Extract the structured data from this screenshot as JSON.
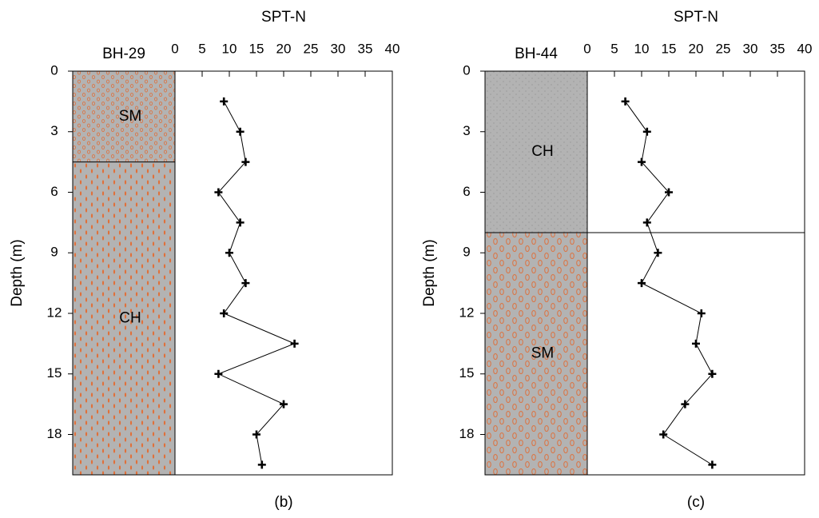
{
  "chart_data": [
    {
      "type": "line",
      "title": "SPT-N",
      "borehole": "BH-29",
      "caption": "(b)",
      "y_label": "Depth (m)",
      "layers": [
        {
          "name": "SM",
          "top": 0,
          "bottom": 4.5
        },
        {
          "name": "CH",
          "top": 4.5,
          "bottom": 20
        }
      ],
      "series": [
        {
          "color": "#000000",
          "x": [
            9,
            12,
            13,
            8,
            12,
            10,
            13,
            9,
            22,
            8,
            20,
            15,
            16
          ],
          "y": [
            1.5,
            3,
            4.5,
            6,
            7.5,
            9,
            10.5,
            12,
            13.5,
            15,
            16.5,
            18,
            19.5
          ]
        }
      ],
      "xlim": [
        0,
        40
      ],
      "xticks": [
        0,
        5,
        10,
        15,
        20,
        25,
        30,
        35,
        40
      ],
      "ylim": [
        0,
        20
      ],
      "yticks": [
        0,
        3,
        6,
        9,
        12,
        15,
        18
      ],
      "y_inverted": true
    },
    {
      "type": "line",
      "title": "SPT-N",
      "borehole": "BH-44",
      "caption": "(c)",
      "y_label": "Depth (m)",
      "layers": [
        {
          "name": "CH",
          "top": 0,
          "bottom": 8
        },
        {
          "name": "SM",
          "top": 8,
          "bottom": 20
        }
      ],
      "series": [
        {
          "color": "#000000",
          "x": [
            7,
            11,
            10,
            15,
            11,
            13,
            10,
            21,
            20,
            23,
            18,
            14,
            23
          ],
          "y": [
            1.5,
            3,
            4.5,
            6,
            7.5,
            9,
            10.5,
            12,
            13.5,
            15,
            16.5,
            18,
            19.5
          ]
        }
      ],
      "xlim": [
        0,
        40
      ],
      "xticks": [
        0,
        5,
        10,
        15,
        20,
        25,
        30,
        35,
        40
      ],
      "ylim": [
        0,
        20
      ],
      "yticks": [
        0,
        3,
        6,
        9,
        12,
        15,
        18
      ],
      "y_inverted": true
    }
  ]
}
